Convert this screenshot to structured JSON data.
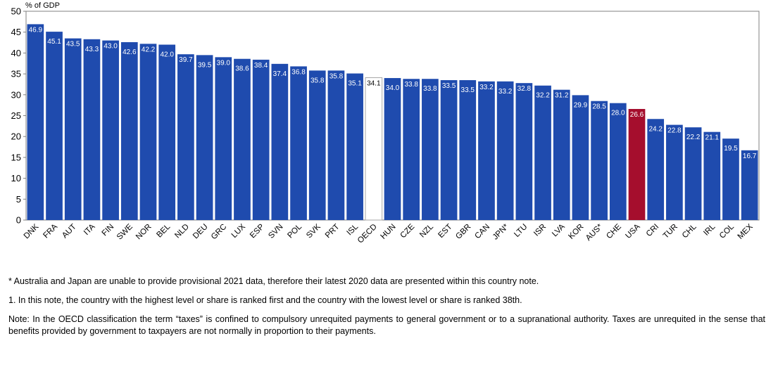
{
  "chart_data": {
    "type": "bar",
    "ylabel": "% of GDP",
    "ylim": [
      0,
      50
    ],
    "yticks": [
      0,
      5,
      10,
      15,
      20,
      25,
      30,
      35,
      40,
      45,
      50
    ],
    "grid": false,
    "categories": [
      "DNK",
      "FRA",
      "AUT",
      "ITA",
      "FIN",
      "SWE",
      "NOR",
      "BEL",
      "NLD",
      "DEU",
      "GRC",
      "LUX",
      "ESP",
      "SVN",
      "POL",
      "SVK",
      "PRT",
      "ISL",
      "OECD",
      "HUN",
      "CZE",
      "NZL",
      "EST",
      "GBR",
      "CAN",
      "JPN*",
      "LTU",
      "ISR",
      "LVA",
      "KOR",
      "AUS*",
      "CHE",
      "USA",
      "CRI",
      "TUR",
      "CHL",
      "IRL",
      "COL",
      "MEX"
    ],
    "values": [
      46.9,
      45.1,
      43.5,
      43.3,
      43.0,
      42.6,
      42.2,
      42.0,
      39.7,
      39.5,
      39.0,
      38.6,
      38.4,
      37.4,
      36.8,
      35.8,
      35.8,
      35.1,
      34.1,
      34.0,
      33.8,
      33.8,
      33.5,
      33.5,
      33.2,
      33.2,
      32.8,
      32.2,
      31.2,
      29.9,
      28.5,
      28.0,
      26.6,
      24.2,
      22.8,
      22.2,
      21.1,
      19.5,
      16.7
    ],
    "value_labels": [
      "46.9",
      "45.1",
      "43.5",
      "43.3",
      "43.0",
      "42.6",
      "42.2",
      "42.0",
      "39.7",
      "39.5",
      "39.0",
      "38.6",
      "38.4",
      "37.4",
      "36.8",
      "35.8",
      "35.8",
      "35.1",
      "34.1",
      "34.0",
      "33.8",
      "33.8",
      "33.5",
      "33.5",
      "33.2",
      "33.2",
      "32.8",
      "32.2",
      "31.2",
      "29.9",
      "28.5",
      "28.0",
      "26.6",
      "24.2",
      "22.8",
      "22.2",
      "21.1",
      "19.5",
      "16.7"
    ],
    "highlight": {
      "OECD": "average",
      "USA": "country"
    },
    "colors": {
      "bar": "#1F4BAE",
      "highlight": "#A50E2D",
      "average": "#FFFFFF",
      "average_border": "#A6A6A6",
      "axis": "#808080"
    }
  },
  "notes": {
    "footnote_star": "* Australia and Japan are unable to provide provisional 2021 data, therefore their latest 2020 data are presented within this country note.",
    "footnote_1": "1. In this note, the country with the highest level or share is ranked first and the country with the lowest level or share is ranked 38th.",
    "note": "Note: In the OECD classification the term “taxes” is confined to compulsory unrequited payments to general government or to a supranational authority. Taxes are unrequited in the sense that benefits provided by government to taxpayers are not normally in proportion to their payments."
  }
}
